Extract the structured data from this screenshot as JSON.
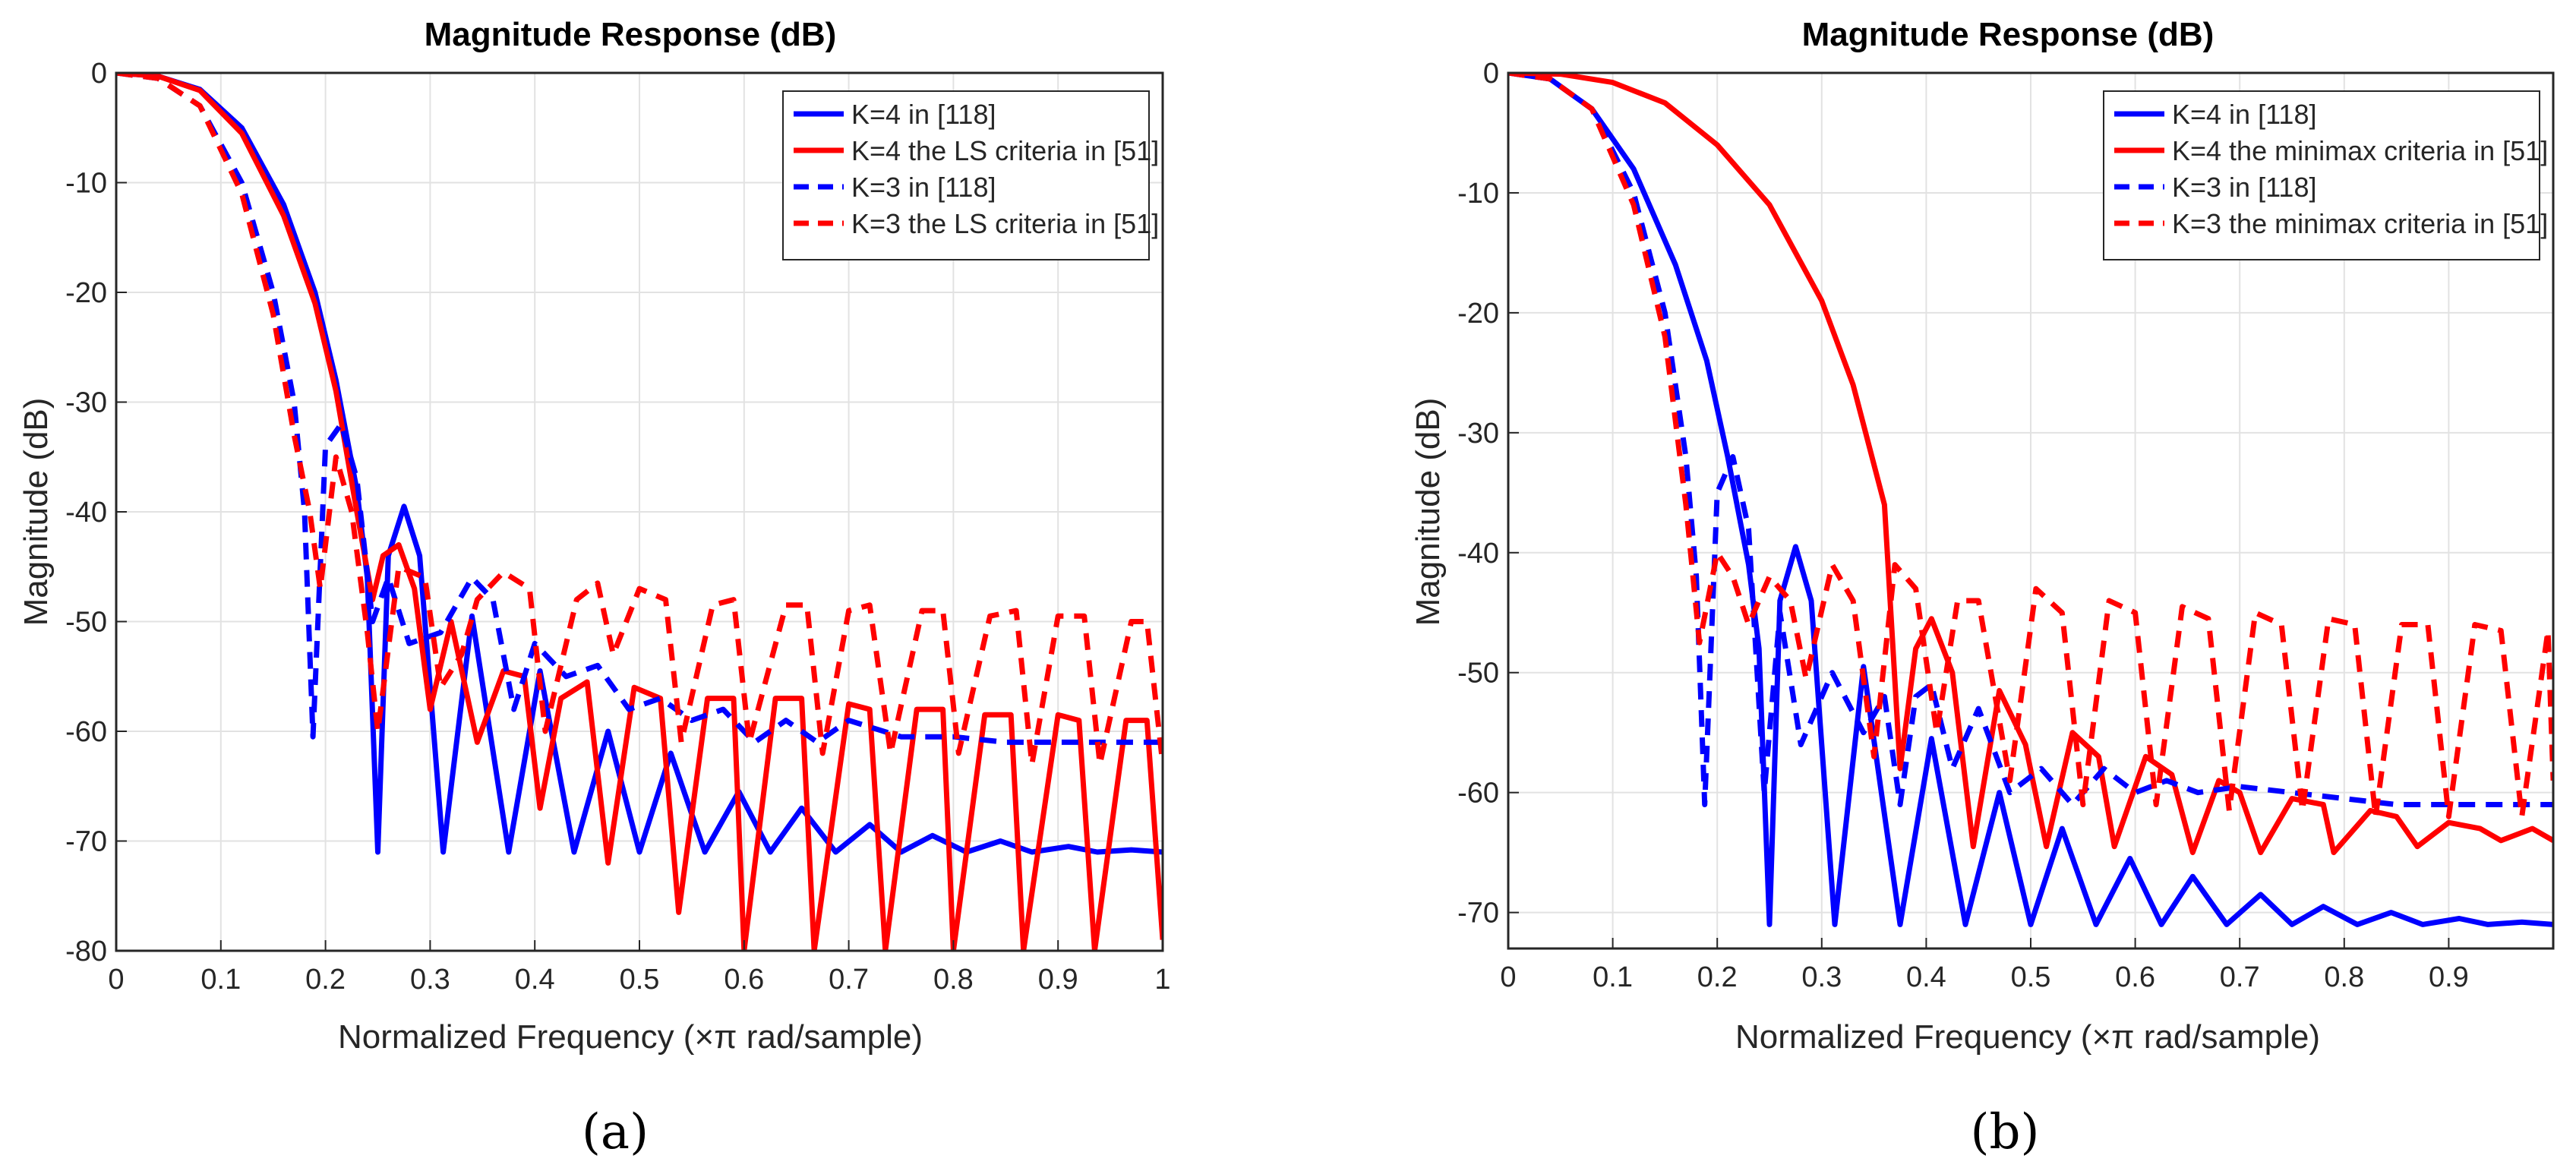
{
  "colors": {
    "series_blue": "#0000ff",
    "series_red": "#ff0000",
    "grid": "#e2e2e2",
    "axis": "#262626",
    "text": "#262626"
  },
  "chart_data": [
    {
      "type": "line",
      "panel_label": "(a)",
      "title": "Magnitude Response (dB)",
      "xlabel": "Normalized Frequency (×π rad/sample)",
      "ylabel": "Magnitude (dB)",
      "xlim": [
        0,
        1
      ],
      "ylim": [
        -80,
        0
      ],
      "xticks": [
        0,
        0.1,
        0.2,
        0.3,
        0.4,
        0.5,
        0.6,
        0.7,
        0.8,
        0.9,
        1
      ],
      "xtick_labels": [
        "0",
        "0.1",
        "0.2",
        "0.3",
        "0.4",
        "0.5",
        "0.6",
        "0.7",
        "0.8",
        "0.9",
        "1"
      ],
      "yticks": [
        0,
        -10,
        -20,
        -30,
        -40,
        -50,
        -60,
        -70,
        -80
      ],
      "ytick_labels": [
        "0",
        "-10",
        "-20",
        "-30",
        "-40",
        "-50",
        "-60",
        "-70",
        "-80"
      ],
      "grid": true,
      "legend_position": "top-right",
      "series": [
        {
          "name": "K=4 in [118]",
          "color": "#0000ff",
          "dash": "solid",
          "x": [
            0,
            0.04,
            0.08,
            0.12,
            0.16,
            0.19,
            0.21,
            0.23,
            0.24,
            0.25,
            0.26,
            0.275,
            0.29,
            0.3125,
            0.34,
            0.375,
            0.405,
            0.4375,
            0.47,
            0.5,
            0.53,
            0.5625,
            0.595,
            0.625,
            0.655,
            0.6875,
            0.72,
            0.75,
            0.78,
            0.8125,
            0.845,
            0.875,
            0.91,
            0.9375,
            0.97,
            1.0
          ],
          "y": [
            0,
            -0.3,
            -1.5,
            -5,
            -12,
            -20,
            -28,
            -38,
            -46,
            -71,
            -44,
            -39.5,
            -44,
            -71,
            -49.5,
            -71,
            -54.5,
            -71,
            -60,
            -71,
            -62,
            -71,
            -65.5,
            -71,
            -67,
            -71,
            -68.5,
            -71,
            -69.5,
            -71,
            -70,
            -71,
            -70.5,
            -71,
            -70.8,
            -71
          ]
        },
        {
          "name": "K=4 the LS criteria in [51]",
          "color": "#ff0000",
          "dash": "solid",
          "x": [
            0,
            0.04,
            0.08,
            0.12,
            0.16,
            0.19,
            0.21,
            0.23,
            0.245,
            0.255,
            0.27,
            0.285,
            0.3,
            0.32,
            0.345,
            0.37,
            0.39,
            0.405,
            0.425,
            0.45,
            0.47,
            0.495,
            0.52,
            0.5375,
            0.565,
            0.59,
            0.6,
            0.63,
            0.655,
            0.667,
            0.7,
            0.72,
            0.735,
            0.765,
            0.79,
            0.8,
            0.83,
            0.855,
            0.867,
            0.9,
            0.92,
            0.935,
            0.965,
            0.985,
            1.0
          ],
          "y": [
            0,
            -0.3,
            -1.6,
            -5.5,
            -13,
            -21,
            -29,
            -40,
            -48,
            -44,
            -43,
            -47,
            -58,
            -50,
            -61,
            -54.5,
            -55,
            -67,
            -57,
            -55.5,
            -72,
            -56,
            -57,
            -76.5,
            -57,
            -57,
            -80,
            -57,
            -57,
            -80,
            -57.5,
            -58,
            -80,
            -58,
            -58,
            -80,
            -58.5,
            -58.5,
            -80,
            -58.5,
            -59,
            -80,
            -59,
            -59,
            -79
          ]
        },
        {
          "name": "K=3 in [118]",
          "color": "#0000ff",
          "dash": "dashed",
          "x": [
            0,
            0.04,
            0.08,
            0.12,
            0.15,
            0.17,
            0.18,
            0.188,
            0.2,
            0.215,
            0.23,
            0.245,
            0.26,
            0.28,
            0.31,
            0.34,
            0.36,
            0.38,
            0.4,
            0.43,
            0.46,
            0.49,
            0.52,
            0.55,
            0.58,
            0.61,
            0.64,
            0.67,
            0.7,
            0.75,
            0.8,
            0.85,
            0.9,
            0.95,
            1.0
          ],
          "y": [
            0,
            -0.5,
            -3,
            -10,
            -20,
            -30,
            -40,
            -60.5,
            -34,
            -32,
            -37,
            -50,
            -46,
            -52,
            -51,
            -46,
            -48,
            -58,
            -52,
            -55,
            -54,
            -58,
            -57,
            -59,
            -58,
            -61,
            -59,
            -61,
            -59,
            -60.5,
            -60.5,
            -61,
            -61,
            -61,
            -61
          ]
        },
        {
          "name": "K=3 the LS criteria in [51]",
          "color": "#ff0000",
          "dash": "dashed",
          "x": [
            0,
            0.04,
            0.08,
            0.12,
            0.15,
            0.17,
            0.185,
            0.195,
            0.21,
            0.225,
            0.24,
            0.25,
            0.27,
            0.295,
            0.31,
            0.33,
            0.345,
            0.37,
            0.395,
            0.41,
            0.44,
            0.46,
            0.475,
            0.5,
            0.525,
            0.54,
            0.57,
            0.59,
            0.605,
            0.64,
            0.66,
            0.675,
            0.7,
            0.72,
            0.74,
            0.77,
            0.79,
            0.805,
            0.835,
            0.86,
            0.875,
            0.9,
            0.925,
            0.94,
            0.97,
            0.985,
            1.0
          ],
          "y": [
            0,
            -0.5,
            -3,
            -11,
            -22,
            -33,
            -40,
            -47,
            -35,
            -40,
            -51,
            -60,
            -45,
            -46,
            -56,
            -53,
            -48,
            -45.5,
            -47,
            -60,
            -48,
            -46.5,
            -53,
            -47,
            -48,
            -61,
            -48.5,
            -48,
            -61,
            -48.5,
            -48.5,
            -62,
            -49,
            -48.5,
            -62,
            -49,
            -49,
            -62,
            -49.5,
            -49,
            -63,
            -49.5,
            -49.5,
            -63,
            -50,
            -50,
            -63
          ]
        }
      ]
    },
    {
      "type": "line",
      "panel_label": "(b)",
      "title": "Magnitude Response (dB)",
      "xlabel": "Normalized Frequency (×π rad/sample)",
      "ylabel": "Magnitude (dB)",
      "xlim": [
        0,
        1
      ],
      "ylim": [
        -73,
        0
      ],
      "xticks": [
        0,
        0.1,
        0.2,
        0.3,
        0.4,
        0.5,
        0.6,
        0.7,
        0.8,
        0.9
      ],
      "xtick_labels": [
        "0",
        "0.1",
        "0.2",
        "0.3",
        "0.4",
        "0.5",
        "0.6",
        "0.7",
        "0.8",
        "0.9"
      ],
      "yticks": [
        0,
        -10,
        -20,
        -30,
        -40,
        -50,
        -60,
        -70
      ],
      "ytick_labels": [
        "0",
        "-10",
        "-20",
        "-30",
        "-40",
        "-50",
        "-60",
        "-70"
      ],
      "grid": true,
      "legend_position": "top-right",
      "series": [
        {
          "name": "K=4 in [118]",
          "color": "#0000ff",
          "dash": "solid",
          "x": [
            0,
            0.04,
            0.08,
            0.12,
            0.16,
            0.19,
            0.21,
            0.23,
            0.24,
            0.25,
            0.26,
            0.275,
            0.29,
            0.3125,
            0.34,
            0.375,
            0.405,
            0.4375,
            0.47,
            0.5,
            0.53,
            0.5625,
            0.595,
            0.625,
            0.655,
            0.6875,
            0.72,
            0.75,
            0.78,
            0.8125,
            0.845,
            0.875,
            0.91,
            0.9375,
            0.97,
            1.0
          ],
          "y": [
            0,
            -0.5,
            -3,
            -8,
            -16,
            -24,
            -32,
            -41,
            -48,
            -71,
            -44,
            -39.5,
            -44,
            -71,
            -49.5,
            -71,
            -55.5,
            -71,
            -60,
            -71,
            -63,
            -71,
            -65.5,
            -71,
            -67,
            -71,
            -68.5,
            -71,
            -69.5,
            -71,
            -70,
            -71,
            -70.5,
            -71,
            -70.8,
            -71
          ]
        },
        {
          "name": "K=4 the minimax criteria in [51]",
          "color": "#ff0000",
          "dash": "solid",
          "x": [
            0,
            0.05,
            0.1,
            0.15,
            0.2,
            0.25,
            0.3,
            0.33,
            0.36,
            0.375,
            0.39,
            0.405,
            0.425,
            0.445,
            0.47,
            0.495,
            0.515,
            0.54,
            0.565,
            0.58,
            0.61,
            0.635,
            0.655,
            0.68,
            0.7,
            0.72,
            0.75,
            0.78,
            0.79,
            0.825,
            0.85,
            0.87,
            0.9,
            0.93,
            0.95,
            0.98,
            1.0
          ],
          "y": [
            0,
            -0.1,
            -0.8,
            -2.5,
            -6,
            -11,
            -19,
            -26,
            -36,
            -58,
            -48,
            -45.5,
            -50,
            -64.5,
            -51.5,
            -56,
            -64.5,
            -55,
            -57,
            -64.5,
            -57,
            -58.5,
            -65,
            -59,
            -60,
            -65,
            -60.5,
            -61,
            -65,
            -61.5,
            -62,
            -64.5,
            -62.5,
            -63,
            -64,
            -63,
            -64
          ]
        },
        {
          "name": "K=3 in [118]",
          "color": "#0000ff",
          "dash": "dashed",
          "x": [
            0,
            0.04,
            0.08,
            0.12,
            0.15,
            0.17,
            0.18,
            0.188,
            0.2,
            0.215,
            0.23,
            0.245,
            0.26,
            0.28,
            0.31,
            0.34,
            0.36,
            0.375,
            0.39,
            0.405,
            0.425,
            0.45,
            0.48,
            0.51,
            0.54,
            0.57,
            0.6,
            0.63,
            0.66,
            0.7,
            0.75,
            0.8,
            0.85,
            0.9,
            0.95,
            1.0
          ],
          "y": [
            0,
            -0.5,
            -3,
            -10,
            -20,
            -32,
            -42,
            -61,
            -35,
            -32,
            -38,
            -60,
            -45,
            -56,
            -50,
            -55,
            -52,
            -61,
            -52,
            -51,
            -58,
            -53,
            -60,
            -58,
            -61,
            -58,
            -60,
            -59,
            -60,
            -59.5,
            -60,
            -60.5,
            -61,
            -61,
            -61,
            -61
          ]
        },
        {
          "name": "K=3 the minimax criteria in [51]",
          "color": "#ff0000",
          "dash": "dashed",
          "x": [
            0,
            0.04,
            0.08,
            0.12,
            0.15,
            0.17,
            0.183,
            0.2,
            0.215,
            0.23,
            0.25,
            0.27,
            0.285,
            0.31,
            0.33,
            0.35,
            0.37,
            0.39,
            0.41,
            0.43,
            0.45,
            0.48,
            0.505,
            0.53,
            0.55,
            0.575,
            0.6,
            0.62,
            0.645,
            0.67,
            0.69,
            0.715,
            0.74,
            0.76,
            0.785,
            0.81,
            0.83,
            0.855,
            0.88,
            0.9,
            0.925,
            0.95,
            0.97,
            0.995,
            1.0
          ],
          "y": [
            0,
            -0.5,
            -3,
            -11,
            -22,
            -36,
            -47.5,
            -40,
            -42,
            -46,
            -42,
            -44,
            -50.5,
            -41,
            -44,
            -57,
            -41,
            -43,
            -55,
            -44,
            -44,
            -59,
            -43,
            -45,
            -61,
            -44,
            -45,
            -61,
            -44.5,
            -45.5,
            -61.5,
            -45,
            -46,
            -61.5,
            -45.5,
            -46,
            -62,
            -46,
            -46,
            -62,
            -46,
            -46.5,
            -62,
            -46.5,
            -59
          ]
        }
      ]
    }
  ]
}
